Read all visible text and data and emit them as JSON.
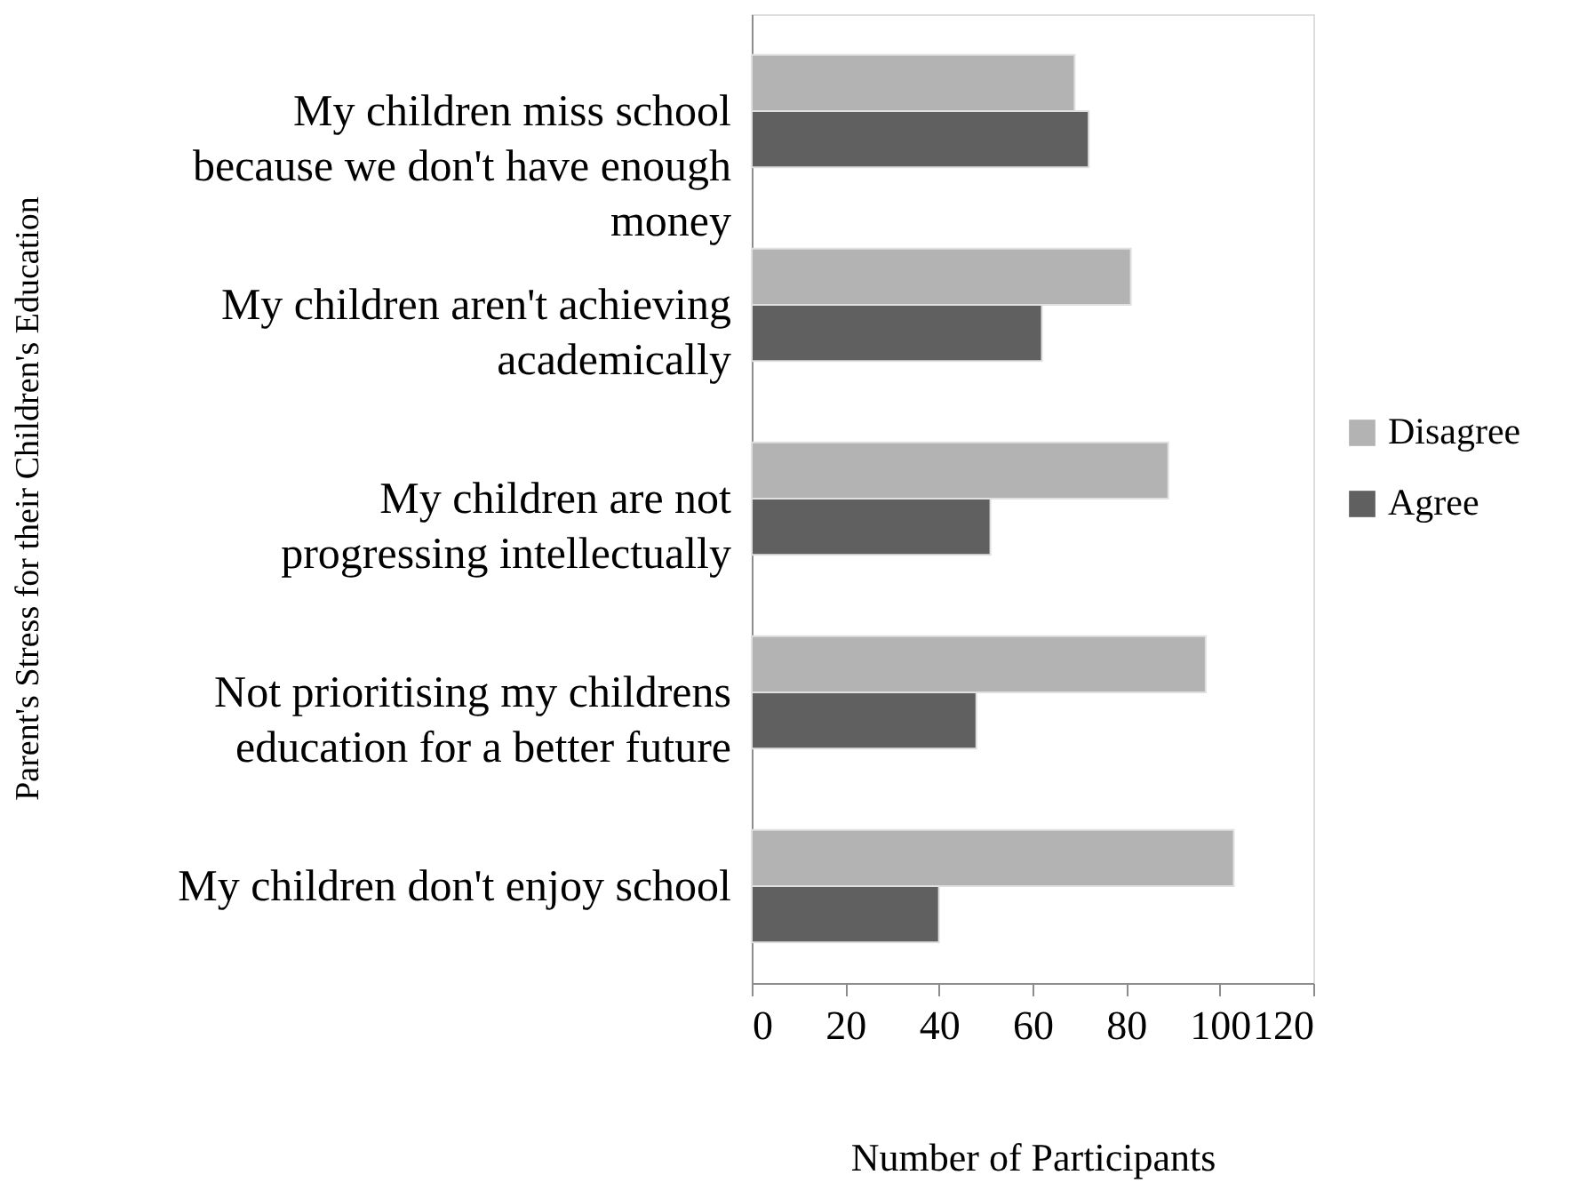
{
  "chart_data": {
    "type": "bar",
    "orientation": "horizontal",
    "xlabel": "Number of Participants",
    "ylabel": "Parent's Stress for their Children's Education",
    "categories": [
      "My children miss school because we don't have enough money",
      "My children aren't achieving academically",
      "My children are not progressing intellectually",
      "Not prioritising my childrens education for a better future",
      "My children don't enjoy school"
    ],
    "series": [
      {
        "name": "Disagree",
        "color": "#b3b3b3",
        "values": [
          69,
          81,
          89,
          97,
          103
        ]
      },
      {
        "name": "Agree",
        "color": "#606060",
        "values": [
          72,
          62,
          51,
          48,
          40
        ]
      }
    ],
    "xlim": [
      0,
      120
    ],
    "xticks": [
      0,
      20,
      40,
      60,
      80,
      100,
      120
    ],
    "grid": false,
    "legend": "right"
  }
}
